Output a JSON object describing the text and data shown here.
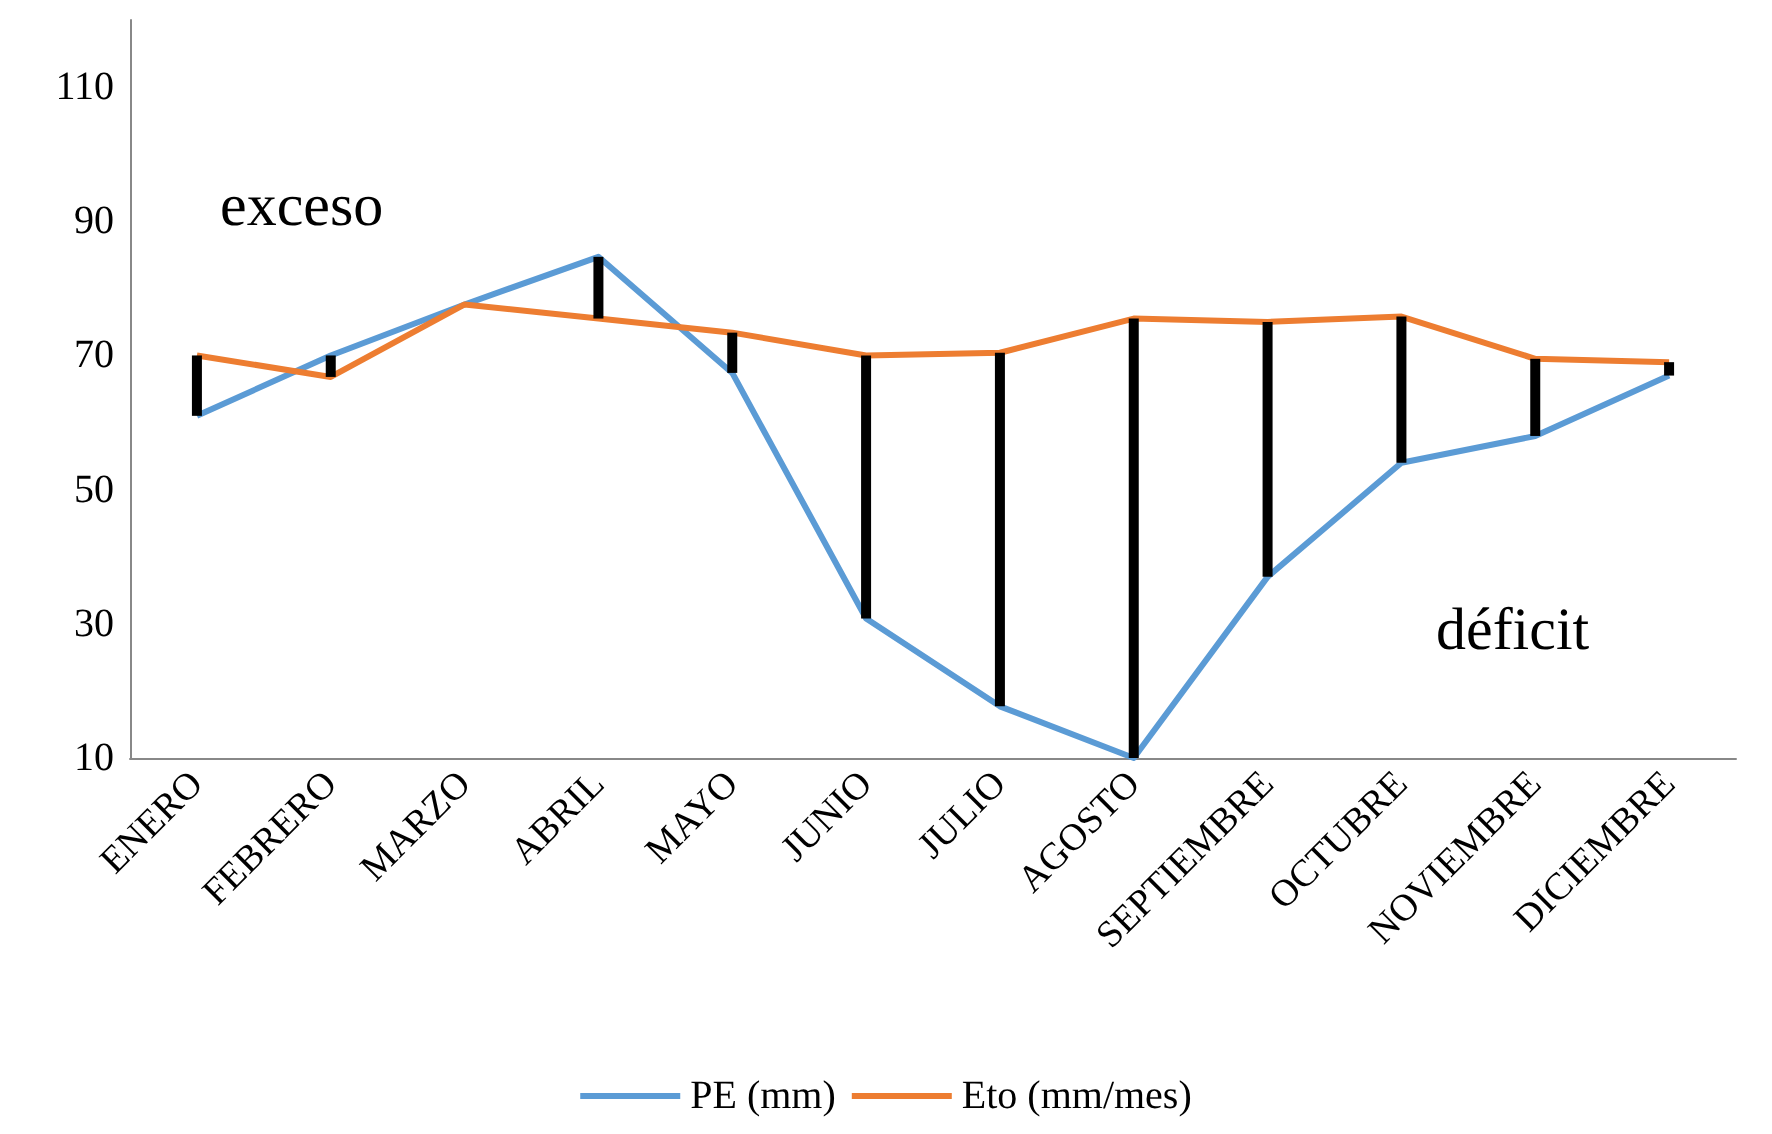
{
  "chart_data": {
    "type": "line",
    "categories": [
      "ENERO",
      "FEBRERO",
      "MARZO",
      "ABRIL",
      "MAYO",
      "JUNIO",
      "JULIO",
      "AGOSTO",
      "SEPTIEMBRE",
      "OCTUBRE",
      "NOVIEMBRE",
      "DICIEMBRE"
    ],
    "series": [
      {
        "type": "bar",
        "color": "#000000",
        "base": [
          61,
          66.8,
          null,
          75.5,
          67.4,
          30.8,
          17.7,
          10,
          37,
          54,
          58,
          67
        ],
        "values": [
          9,
          3.2,
          null,
          9.2,
          6,
          39.2,
          52.7,
          65.5,
          38,
          21.8,
          11.5,
          2
        ]
      },
      {
        "name": "PE (mm)",
        "color": "#5b9bd5",
        "values": [
          61,
          70,
          77.6,
          84.7,
          67.4,
          30.8,
          17.7,
          10,
          37,
          54,
          58,
          67
        ]
      },
      {
        "name": "Eto (mm/mes)",
        "color": "#ed7d31",
        "values": [
          70,
          66.8,
          77.6,
          75.5,
          73.4,
          70,
          70.4,
          75.5,
          75,
          75.8,
          69.5,
          69
        ]
      }
    ],
    "annotations": [
      "exceso",
      "déficit"
    ],
    "ylim": [
      10,
      120
    ],
    "yticks": [
      10,
      30,
      50,
      70,
      90,
      110
    ],
    "grid": false,
    "legend": "bottom",
    "marker": "none",
    "line_style": "solid"
  }
}
